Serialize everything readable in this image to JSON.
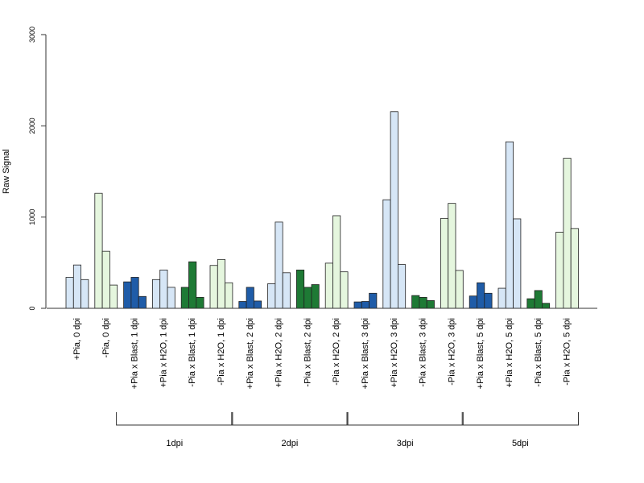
{
  "chart_data": {
    "type": "bar",
    "title": "",
    "xlabel": "",
    "ylabel": "Raw Signal",
    "ylim": [
      0,
      3000
    ],
    "yticks": [
      0,
      1000,
      2000,
      3000
    ],
    "grid": false,
    "legend": "none",
    "categories": [
      "+Pia, 0 dpi",
      "-Pia, 0 dpi",
      "+Pia x Blast, 1 dpi",
      "+Pia x H2O, 1 dpi",
      "-Pia x Blast, 1 dpi",
      "-Pia x H2O, 1 dpi",
      "+Pia x Blast, 2 dpi",
      "+Pia x H2O, 2 dpi",
      "-Pia x Blast, 2 dpi",
      "-Pia x H2O, 2 dpi",
      "+Pia x Blast, 3 dpi",
      "+Pia x H2O, 3 dpi",
      "-Pia x Blast, 3 dpi",
      "-Pia x H2O, 3 dpi",
      "+Pia x Blast, 5 dpi",
      "+Pia x H2O, 5 dpi",
      "-Pia x Blast, 5 dpi",
      "-Pia x H2O, 5 dpi"
    ],
    "group_colors": [
      "#d6e6f6",
      "#e5f6de",
      "#1f5ca8",
      "#d6e6f6",
      "#1e7a35",
      "#e5f6de",
      "#1f5ca8",
      "#d6e6f6",
      "#1e7a35",
      "#e5f6de",
      "#1f5ca8",
      "#d6e6f6",
      "#1e7a35",
      "#e5f6de",
      "#1f5ca8",
      "#d6e6f6",
      "#1e7a35",
      "#e5f6de"
    ],
    "values": [
      [
        340,
        475,
        315
      ],
      [
        1260,
        625,
        255
      ],
      [
        290,
        340,
        130
      ],
      [
        315,
        420,
        230
      ],
      [
        230,
        510,
        120
      ],
      [
        470,
        535,
        280
      ],
      [
        75,
        230,
        80
      ],
      [
        270,
        945,
        390
      ],
      [
        420,
        230,
        260
      ],
      [
        495,
        1015,
        400
      ],
      [
        70,
        75,
        165
      ],
      [
        1190,
        2155,
        480
      ],
      [
        140,
        120,
        85
      ],
      [
        985,
        1150,
        415
      ],
      [
        135,
        280,
        165
      ],
      [
        220,
        1825,
        980
      ],
      [
        105,
        195,
        55
      ],
      [
        835,
        1645,
        875
      ]
    ],
    "brackets": [
      {
        "label": "1dpi",
        "from": 2,
        "to": 5
      },
      {
        "label": "2dpi",
        "from": 6,
        "to": 9
      },
      {
        "label": "3dpi",
        "from": 10,
        "to": 13
      },
      {
        "label": "5dpi",
        "from": 14,
        "to": 17
      }
    ]
  }
}
